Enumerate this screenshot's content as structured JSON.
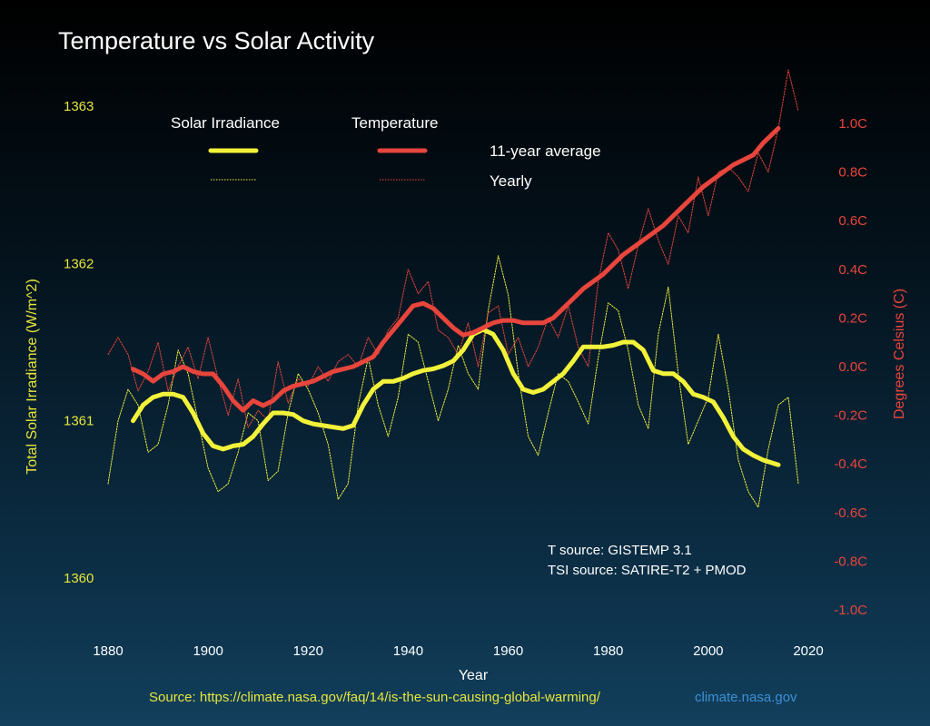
{
  "chart_data": {
    "type": "line",
    "title": "Temperature vs Solar Activity",
    "xlabel": "Year",
    "ylabel_left": "Total Solar Irradiance (W/m^2)",
    "ylabel_right": "Degrees Celsius (C)",
    "xlim": [
      1880,
      2020
    ],
    "x_ticks": [
      "1880",
      "1900",
      "1920",
      "1940",
      "1960",
      "1980",
      "2000",
      "2020"
    ],
    "y_left_lim": [
      1360,
      1363
    ],
    "y_left_ticks": [
      "1360",
      "1361",
      "1362",
      "1363"
    ],
    "y_right_lim": [
      -1.0,
      1.0
    ],
    "y_right_ticks": [
      "-1.0C",
      "-0.8C",
      "-0.6C",
      "-0.4C",
      "-0.2C",
      "0.0C",
      "0.2C",
      "0.4C",
      "0.6C",
      "0.8C",
      "1.0C"
    ],
    "legend": {
      "header_solar": "Solar Irradiance",
      "header_temp": "Temperature",
      "row_avg": "11-year average",
      "row_yearly": "Yearly"
    },
    "annotation_lines": [
      "T source: GISTEMP 3.1",
      "TSI source: SATIRE-T2 + PMOD"
    ],
    "source_text": "Source: https://climate.nasa.gov/faq/14/is-the-sun-causing-global-warming/",
    "site_text": "climate.nasa.gov",
    "colors": {
      "solar": "#f2f23a",
      "temp": "#e8453c",
      "left_axis": "#e6e63c",
      "right_axis": "#e8453c",
      "site": "#3d8fd6",
      "source": "#e6e63c"
    },
    "series": [
      {
        "name": "Solar Irradiance 11-year average",
        "axis": "left",
        "x": [
          1885,
          1887,
          1889,
          1891,
          1893,
          1895,
          1897,
          1899,
          1901,
          1903,
          1905,
          1907,
          1909,
          1911,
          1913,
          1915,
          1917,
          1919,
          1921,
          1923,
          1925,
          1927,
          1929,
          1931,
          1933,
          1935,
          1937,
          1939,
          1941,
          1943,
          1945,
          1947,
          1949,
          1951,
          1953,
          1955,
          1957,
          1959,
          1961,
          1963,
          1965,
          1967,
          1969,
          1971,
          1973,
          1975,
          1977,
          1979,
          1981,
          1983,
          1985,
          1987,
          1989,
          1991,
          1993,
          1995,
          1997,
          1999,
          2001,
          2003,
          2005,
          2007,
          2009,
          2011,
          2014
        ],
        "y": [
          1361.0,
          1361.1,
          1361.15,
          1361.17,
          1361.17,
          1361.15,
          1361.05,
          1360.92,
          1360.84,
          1360.82,
          1360.84,
          1360.85,
          1360.9,
          1360.98,
          1361.05,
          1361.05,
          1361.04,
          1361.0,
          1360.98,
          1360.97,
          1360.96,
          1360.95,
          1360.97,
          1361.1,
          1361.2,
          1361.25,
          1361.25,
          1361.27,
          1361.3,
          1361.32,
          1361.33,
          1361.35,
          1361.38,
          1361.45,
          1361.55,
          1361.58,
          1361.55,
          1361.45,
          1361.3,
          1361.2,
          1361.18,
          1361.2,
          1361.25,
          1361.3,
          1361.38,
          1361.47,
          1361.47,
          1361.47,
          1361.48,
          1361.5,
          1361.5,
          1361.45,
          1361.32,
          1361.3,
          1361.3,
          1361.25,
          1361.17,
          1361.15,
          1361.12,
          1361.02,
          1360.9,
          1360.82,
          1360.78,
          1360.75,
          1360.72
        ]
      },
      {
        "name": "Solar Irradiance yearly",
        "axis": "left",
        "x": [
          1880,
          1882,
          1884,
          1886,
          1888,
          1890,
          1892,
          1894,
          1896,
          1898,
          1900,
          1902,
          1904,
          1906,
          1908,
          1910,
          1912,
          1914,
          1916,
          1918,
          1920,
          1922,
          1924,
          1926,
          1928,
          1930,
          1932,
          1934,
          1936,
          1938,
          1940,
          1942,
          1944,
          1946,
          1948,
          1950,
          1952,
          1954,
          1956,
          1958,
          1960,
          1962,
          1964,
          1966,
          1968,
          1970,
          1972,
          1974,
          1976,
          1978,
          1980,
          1982,
          1984,
          1986,
          1988,
          1990,
          1992,
          1994,
          1996,
          1998,
          2000,
          2002,
          2004,
          2006,
          2008,
          2010,
          2012,
          2014,
          2016,
          2018
        ],
        "y": [
          1360.6,
          1361.0,
          1361.2,
          1361.1,
          1360.8,
          1360.85,
          1361.1,
          1361.45,
          1361.3,
          1361.0,
          1360.7,
          1360.55,
          1360.6,
          1360.8,
          1361.05,
          1361.0,
          1360.62,
          1360.68,
          1361.05,
          1361.3,
          1361.2,
          1361.05,
          1360.85,
          1360.5,
          1360.6,
          1361.1,
          1361.4,
          1361.1,
          1360.9,
          1361.15,
          1361.55,
          1361.5,
          1361.25,
          1361.0,
          1361.2,
          1361.48,
          1361.3,
          1361.2,
          1361.7,
          1362.05,
          1361.8,
          1361.3,
          1360.9,
          1360.78,
          1361.05,
          1361.3,
          1361.25,
          1361.12,
          1360.98,
          1361.4,
          1361.75,
          1361.7,
          1361.45,
          1361.1,
          1360.95,
          1361.55,
          1361.85,
          1361.3,
          1360.85,
          1361.0,
          1361.15,
          1361.55,
          1361.2,
          1360.75,
          1360.55,
          1360.45,
          1360.82,
          1361.1,
          1361.15,
          1360.6
        ]
      },
      {
        "name": "Temperature 11-year average",
        "axis": "right",
        "x": [
          1885,
          1887,
          1889,
          1891,
          1893,
          1895,
          1897,
          1899,
          1901,
          1903,
          1905,
          1907,
          1909,
          1911,
          1913,
          1915,
          1917,
          1919,
          1921,
          1923,
          1925,
          1927,
          1929,
          1931,
          1933,
          1935,
          1937,
          1939,
          1941,
          1943,
          1945,
          1947,
          1949,
          1951,
          1953,
          1955,
          1957,
          1959,
          1961,
          1963,
          1965,
          1967,
          1969,
          1971,
          1973,
          1975,
          1977,
          1979,
          1981,
          1983,
          1985,
          1987,
          1989,
          1991,
          1993,
          1995,
          1997,
          1999,
          2001,
          2003,
          2005,
          2007,
          2009,
          2011,
          2014
        ],
        "y": [
          -0.01,
          -0.03,
          -0.06,
          -0.03,
          -0.02,
          0.0,
          -0.02,
          -0.03,
          -0.03,
          -0.08,
          -0.14,
          -0.18,
          -0.14,
          -0.16,
          -0.14,
          -0.1,
          -0.08,
          -0.07,
          -0.06,
          -0.04,
          -0.02,
          -0.01,
          0.0,
          0.02,
          0.04,
          0.1,
          0.15,
          0.2,
          0.25,
          0.26,
          0.24,
          0.2,
          0.16,
          0.13,
          0.14,
          0.16,
          0.18,
          0.19,
          0.19,
          0.18,
          0.18,
          0.18,
          0.2,
          0.24,
          0.28,
          0.32,
          0.35,
          0.38,
          0.42,
          0.46,
          0.49,
          0.52,
          0.55,
          0.58,
          0.62,
          0.66,
          0.7,
          0.74,
          0.77,
          0.8,
          0.83,
          0.85,
          0.87,
          0.92,
          0.98
        ]
      },
      {
        "name": "Temperature yearly",
        "axis": "right",
        "x": [
          1880,
          1882,
          1884,
          1886,
          1888,
          1890,
          1892,
          1894,
          1896,
          1898,
          1900,
          1902,
          1904,
          1906,
          1908,
          1910,
          1912,
          1914,
          1916,
          1918,
          1920,
          1922,
          1924,
          1926,
          1928,
          1930,
          1932,
          1934,
          1936,
          1938,
          1940,
          1942,
          1944,
          1946,
          1948,
          1950,
          1952,
          1954,
          1956,
          1958,
          1960,
          1962,
          1964,
          1966,
          1968,
          1970,
          1972,
          1974,
          1976,
          1978,
          1980,
          1982,
          1984,
          1986,
          1988,
          1990,
          1992,
          1994,
          1996,
          1998,
          2000,
          2002,
          2004,
          2006,
          2008,
          2010,
          2012,
          2014,
          2016,
          2018
        ],
        "y": [
          0.05,
          0.12,
          0.05,
          -0.1,
          -0.02,
          0.1,
          -0.1,
          0.0,
          0.08,
          -0.05,
          0.12,
          -0.05,
          -0.2,
          -0.05,
          -0.25,
          -0.18,
          -0.22,
          0.02,
          -0.15,
          -0.05,
          -0.08,
          0.0,
          -0.06,
          0.02,
          0.05,
          0.0,
          0.12,
          0.05,
          0.15,
          0.2,
          0.4,
          0.3,
          0.35,
          0.15,
          0.12,
          0.05,
          0.18,
          0.0,
          0.22,
          0.25,
          0.05,
          0.12,
          0.0,
          0.08,
          0.2,
          0.12,
          0.25,
          0.08,
          0.0,
          0.35,
          0.55,
          0.48,
          0.32,
          0.5,
          0.65,
          0.52,
          0.42,
          0.62,
          0.55,
          0.78,
          0.62,
          0.8,
          0.82,
          0.78,
          0.72,
          0.88,
          0.8,
          0.98,
          1.22,
          1.05
        ]
      }
    ]
  }
}
